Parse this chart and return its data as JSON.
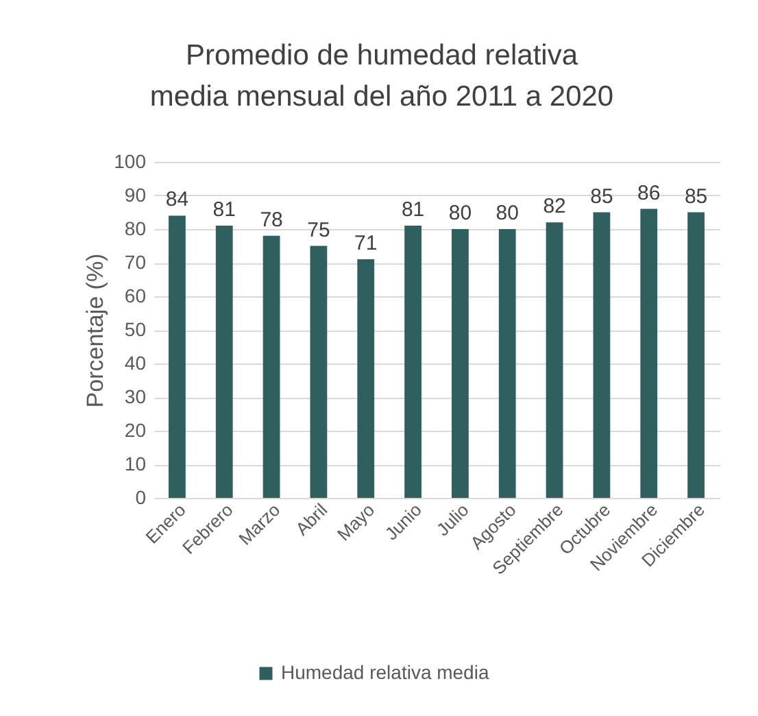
{
  "chart_data": {
    "type": "bar",
    "title": "Promedio de humedad relativa media mensual del año 2011 a 2020",
    "ylabel": "Porcentaje (%)",
    "categories": [
      "Enero",
      "Febrero",
      "Marzo",
      "Abril",
      "Mayo",
      "Junio",
      "Julio",
      "Agosto",
      "Septiembre",
      "Octubre",
      "Noviembre",
      "Diciembre"
    ],
    "series": [
      {
        "name": "Humedad relativa media",
        "color": "#2f5f5e",
        "values": [
          84,
          81,
          78,
          75,
          71,
          81,
          80,
          80,
          82,
          85,
          86,
          85
        ]
      }
    ],
    "ylim": [
      0,
      100
    ],
    "yticks": [
      0,
      10,
      20,
      30,
      40,
      50,
      60,
      70,
      80,
      90,
      100
    ],
    "grid": "y",
    "data_labels": true,
    "legend": "bottom"
  }
}
